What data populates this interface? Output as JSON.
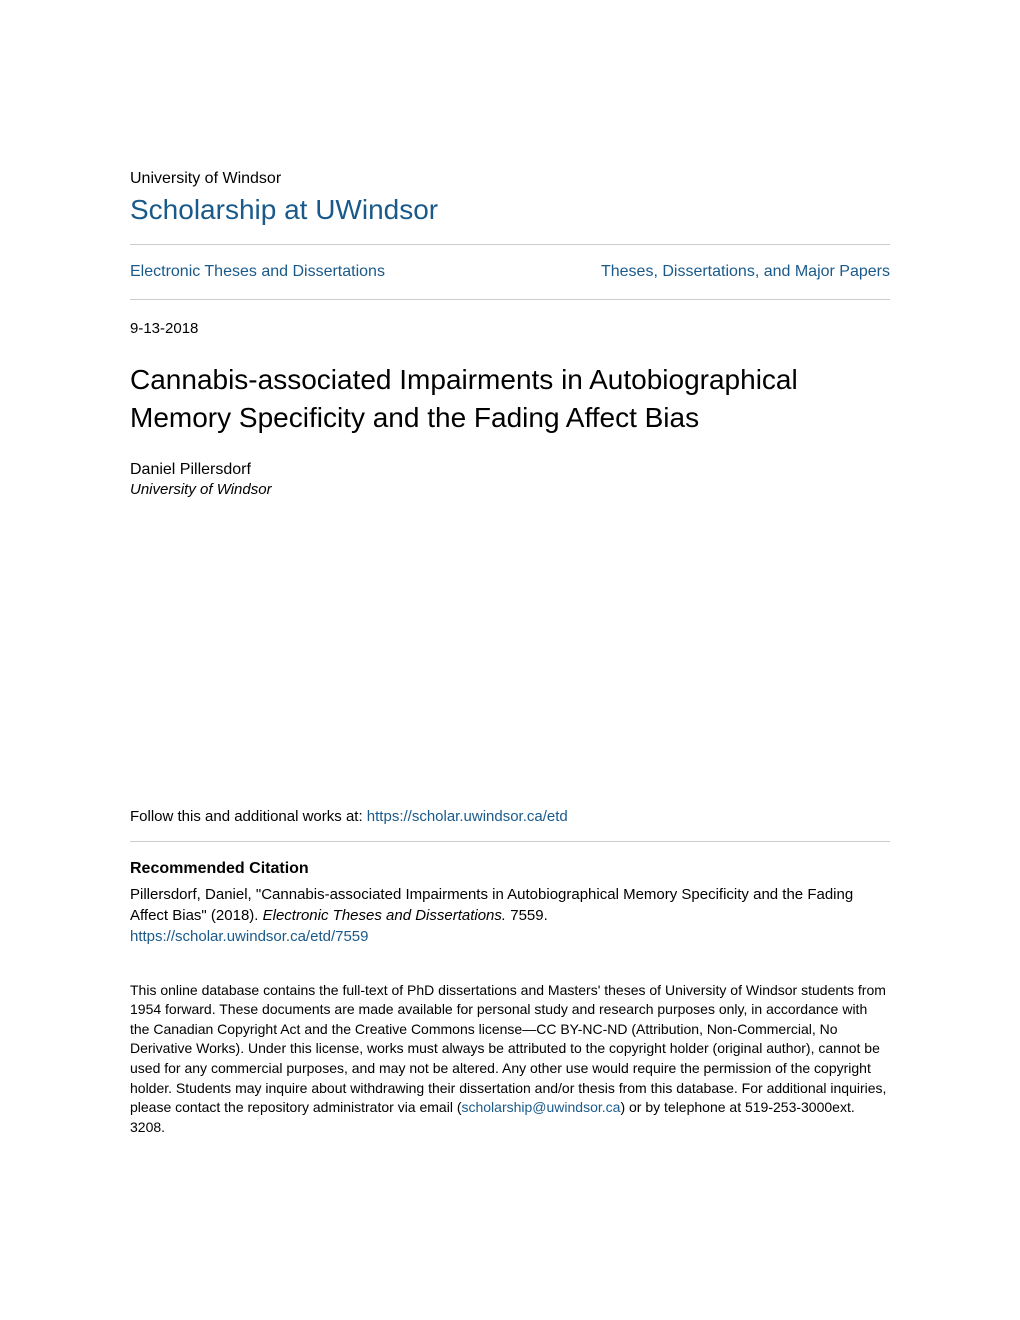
{
  "header": {
    "institution": "University of Windsor",
    "repository": "Scholarship at UWindsor"
  },
  "nav": {
    "left": "Electronic Theses and Dissertations",
    "right": "Theses, Dissertations, and Major Papers"
  },
  "meta": {
    "date": "9-13-2018"
  },
  "paper": {
    "title": "Cannabis-associated Impairments in Autobiographical Memory Specificity and the Fading Affect Bias",
    "author": "Daniel Pillersdorf",
    "affiliation": "University of Windsor"
  },
  "follow": {
    "prefix": "Follow this and additional works at: ",
    "url": "https://scholar.uwindsor.ca/etd"
  },
  "citation": {
    "header": "Recommended Citation",
    "line1": "Pillersdorf, Daniel, \"Cannabis-associated Impairments in Autobiographical Memory Specificity and the Fading Affect Bias\" (2018). ",
    "series": "Electronic Theses and Dissertations.",
    "number": " 7559.",
    "link": "https://scholar.uwindsor.ca/etd/7559"
  },
  "disclaimer": {
    "text1": "This online database contains the full-text of PhD dissertations and Masters' theses of University of Windsor students from 1954 forward. These documents are made available for personal study and research purposes only, in accordance with the Canadian Copyright Act and the Creative Commons license—CC BY-NC-ND (Attribution, Non-Commercial, No Derivative Works). Under this license, works must always be attributed to the copyright holder (original author), cannot be used for any commercial purposes, and may not be altered. Any other use would require the permission of the copyright holder. Students may inquire about withdrawing their dissertation and/or thesis from this database. For additional inquiries, please contact the repository administrator via email (",
    "email": "scholarship@uwindsor.ca",
    "text2": ") or by telephone at 519-253-3000ext. 3208."
  },
  "colors": {
    "link": "#1a5a8a",
    "text": "#000000",
    "divider": "#cccccc",
    "background": "#ffffff"
  },
  "typography": {
    "institution_fontsize": 16,
    "repository_fontsize": 28,
    "nav_fontsize": 16,
    "title_fontsize": 28,
    "body_fontsize": 15,
    "disclaimer_fontsize": 14
  }
}
